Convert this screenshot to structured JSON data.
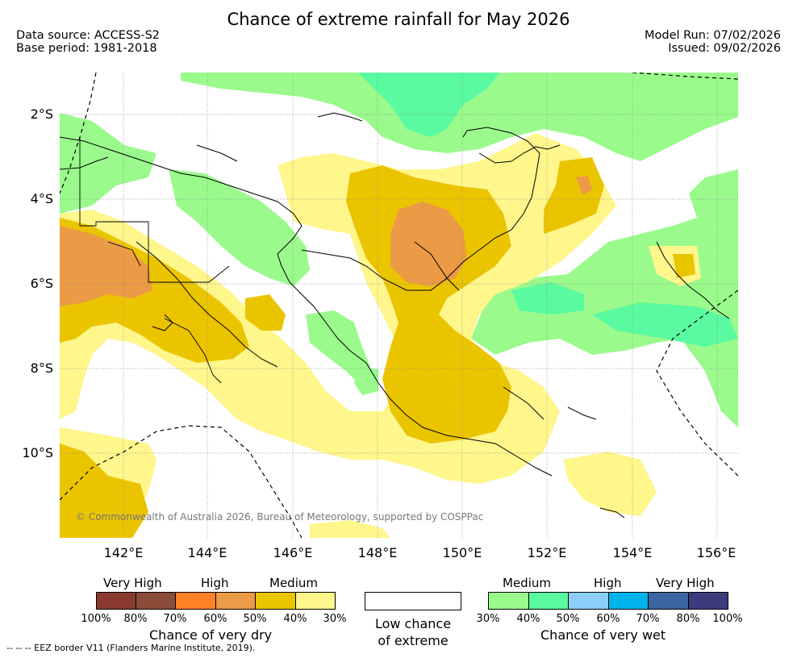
{
  "title": "Chance of extreme rainfall for May 2026",
  "data_source": "Data source: ACCESS-S2",
  "base_period": "Base period: 1981-2018",
  "model_run": "Model Run: 07/02/2026",
  "issued": "Issued: 09/02/2026",
  "copyright": "© Commonwealth of Australia 2026, Bureau of Meteorology, supported by COSPPac",
  "lat_labels": [
    "2°S",
    "4°S",
    "6°S",
    "8°S",
    "10°S"
  ],
  "lon_labels": [
    "142°E",
    "144°E",
    "146°E",
    "148°E",
    "150°E",
    "152°E",
    "154°E",
    "156°E"
  ],
  "legend": {
    "dry": {
      "levels": [
        "Very High",
        "High",
        "Medium"
      ],
      "percents": [
        "100%",
        "80%",
        "70%",
        "60%",
        "50%",
        "40%",
        "30%"
      ],
      "colors": [
        "#8b3a2f",
        "#8b4d3a",
        "#ff8025",
        "#eb9a46",
        "#ebc400",
        "#fff68c"
      ],
      "caption": "Chance of very dry"
    },
    "low": {
      "line1": "Low chance",
      "line2": "of extreme"
    },
    "wet": {
      "levels": [
        "Medium",
        "High",
        "Very High"
      ],
      "percents": [
        "30%",
        "40%",
        "50%",
        "60%",
        "70%",
        "80%",
        "100%"
      ],
      "colors": [
        "#9afa8c",
        "#5afaa0",
        "#8ccdfa",
        "#00b4eb",
        "#3c64a0",
        "#3c3c7d"
      ],
      "caption": "Chance of very wet"
    }
  },
  "eez_note": "--  --  -- EEZ border V11 (Flanders Marine Institute, 2019)."
}
